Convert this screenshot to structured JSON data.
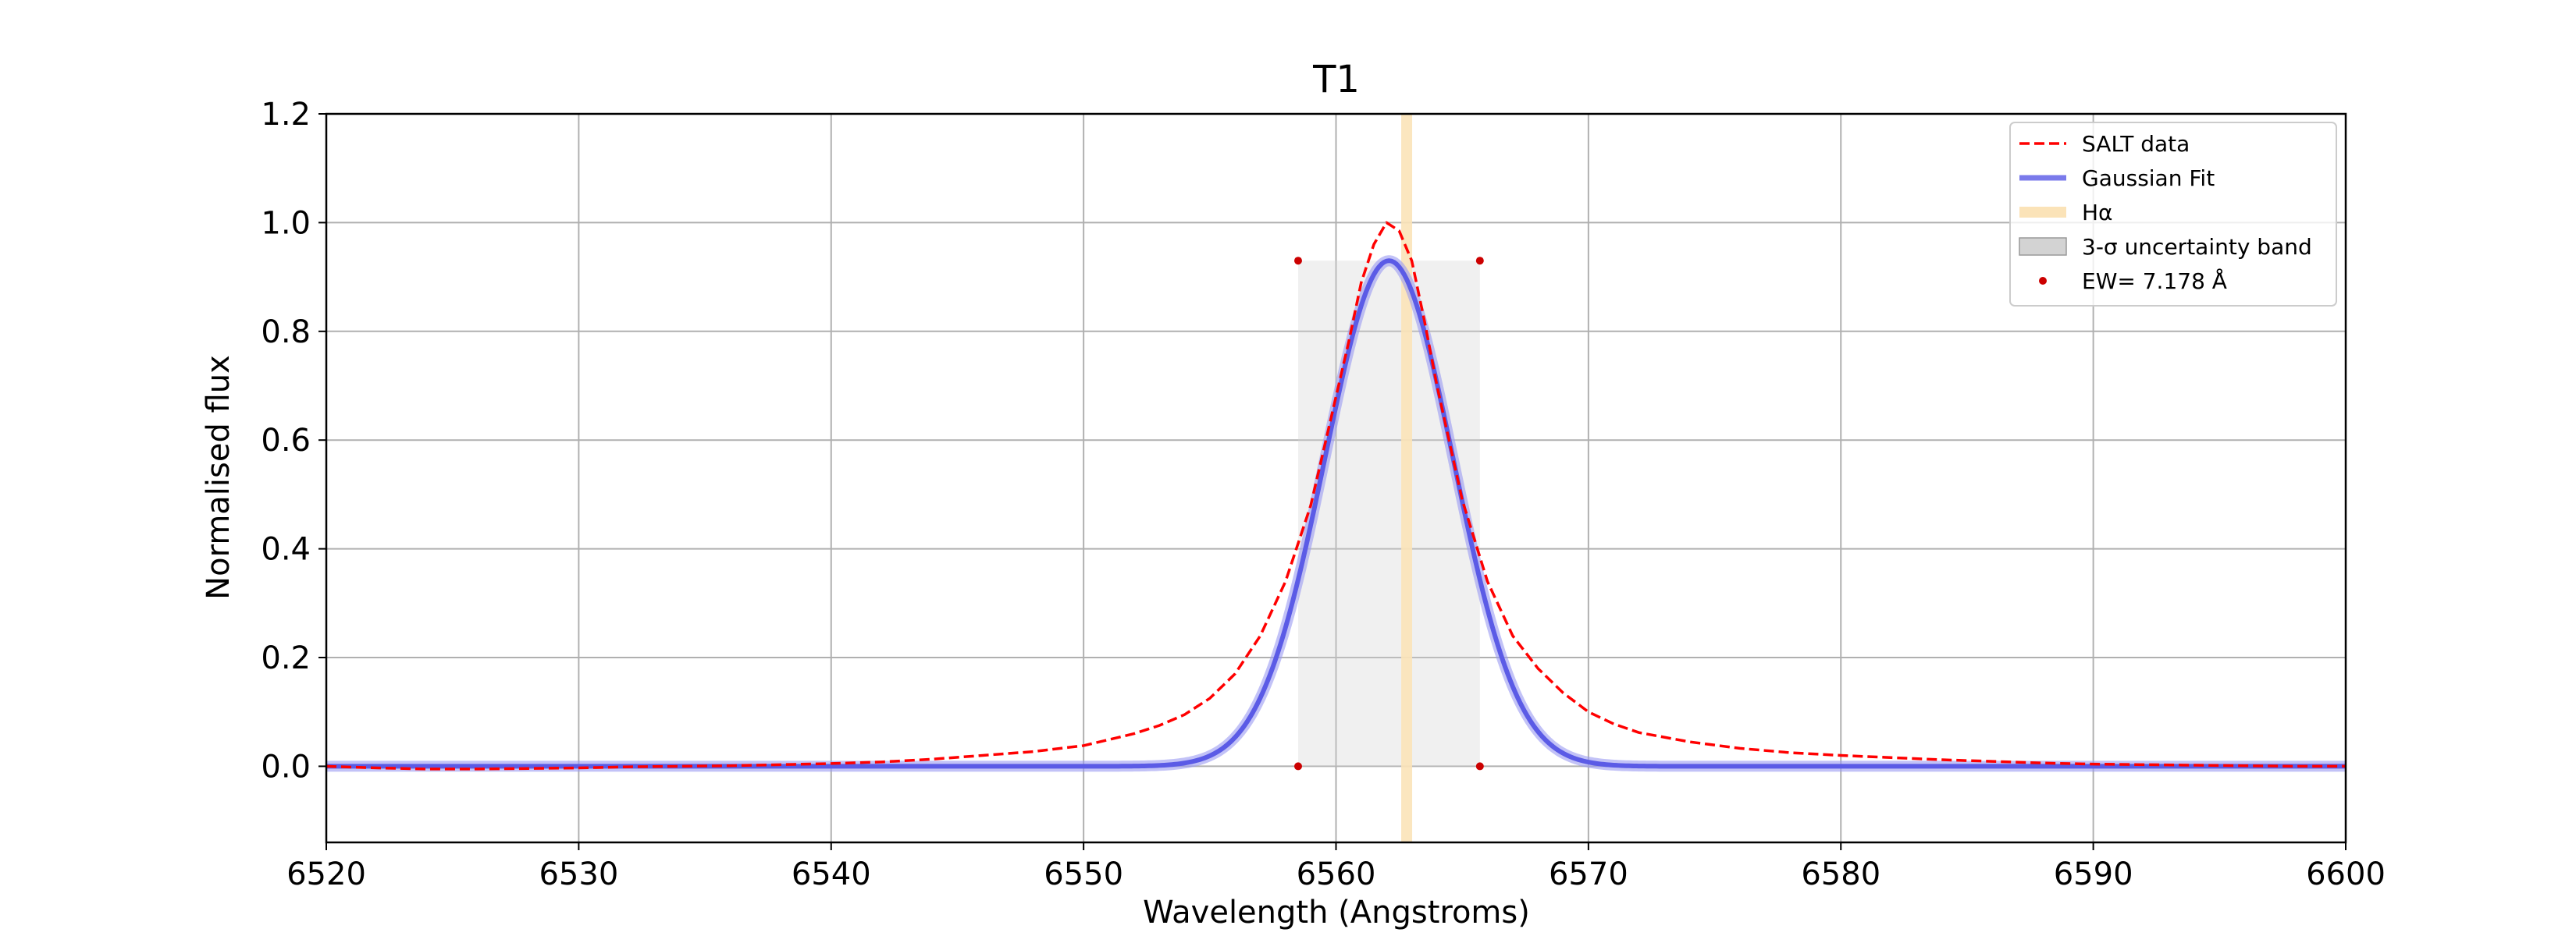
{
  "chart_data": {
    "type": "line",
    "title": "T1",
    "xlabel": "Wavelength (Angstroms)",
    "ylabel": "Normalised flux",
    "xlim": [
      6520,
      6600
    ],
    "ylim": [
      -0.14,
      1.2
    ],
    "xticks": [
      6520,
      6530,
      6540,
      6550,
      6560,
      6570,
      6580,
      6590,
      6600
    ],
    "yticks": [
      0.0,
      0.2,
      0.4,
      0.6,
      0.8,
      1.0,
      1.2
    ],
    "xtick_labels": [
      "6520",
      "6530",
      "6540",
      "6550",
      "6560",
      "6570",
      "6580",
      "6590",
      "6600"
    ],
    "ytick_labels": [
      "0.0",
      "0.2",
      "0.4",
      "0.6",
      "0.8",
      "1.0",
      "1.2"
    ],
    "grid": true,
    "legend_position": "top-right",
    "series": [
      {
        "name": "SALT data",
        "style": "dashed",
        "color": "#ff0000",
        "x": [
          6520,
          6522,
          6524,
          6526,
          6528,
          6530,
          6532,
          6534,
          6536,
          6538,
          6540,
          6542,
          6544,
          6546,
          6548,
          6550,
          6552,
          6553,
          6554,
          6555,
          6556,
          6557,
          6558,
          6559,
          6560,
          6560.5,
          6561,
          6561.5,
          6562,
          6562.5,
          6563,
          6563.5,
          6564,
          6565,
          6566,
          6567,
          6568,
          6569,
          6570,
          6571,
          6572,
          6574,
          6576,
          6578,
          6580,
          6582,
          6584,
          6586,
          6588,
          6590,
          6592,
          6594,
          6596,
          6598,
          6600
        ],
        "y": [
          0.0,
          -0.003,
          -0.005,
          -0.005,
          -0.004,
          -0.003,
          -0.001,
          0.0,
          0.001,
          0.003,
          0.005,
          0.008,
          0.013,
          0.02,
          0.027,
          0.038,
          0.06,
          0.075,
          0.095,
          0.125,
          0.17,
          0.24,
          0.34,
          0.48,
          0.68,
          0.78,
          0.89,
          0.96,
          1.0,
          0.985,
          0.93,
          0.82,
          0.7,
          0.49,
          0.34,
          0.24,
          0.18,
          0.135,
          0.1,
          0.078,
          0.062,
          0.045,
          0.033,
          0.025,
          0.02,
          0.016,
          0.012,
          0.009,
          0.006,
          0.004,
          0.003,
          0.002,
          0.001,
          0.0,
          0.0
        ]
      },
      {
        "name": "Gaussian Fit",
        "style": "solid",
        "color": "#5b5be6",
        "model": "gaussian",
        "amplitude": 0.93,
        "center": 6562.1,
        "sigma": 2.55,
        "x_range": [
          6520,
          6600
        ]
      },
      {
        "name": "3-σ uncertainty band",
        "type": "band",
        "color": "#d3d3d3",
        "x_range": [
          6558.5,
          6565.7
        ],
        "y_range": [
          0.0,
          0.93
        ]
      }
    ],
    "vline": {
      "name": "Hα",
      "x": 6562.8,
      "color": "#fbe3b8"
    },
    "markers": {
      "name": "EW= 7.178 Å",
      "color": "#cc0000",
      "points": [
        {
          "x": 6558.5,
          "y": 0.93
        },
        {
          "x": 6565.7,
          "y": 0.93
        },
        {
          "x": 6558.5,
          "y": 0.0
        },
        {
          "x": 6565.7,
          "y": 0.0
        }
      ]
    },
    "legend": [
      {
        "label": "SALT data",
        "kind": "dashed-line",
        "color": "#ff0000"
      },
      {
        "label": "Gaussian Fit",
        "kind": "line",
        "color": "#7a7aeb"
      },
      {
        "label": "Hα",
        "kind": "thick-line",
        "color": "#fbe3b8"
      },
      {
        "label": "3-σ uncertainty band",
        "kind": "patch",
        "color": "#d3d3d3"
      },
      {
        "label": "EW= 7.178 Å",
        "kind": "marker",
        "color": "#cc0000"
      }
    ]
  }
}
